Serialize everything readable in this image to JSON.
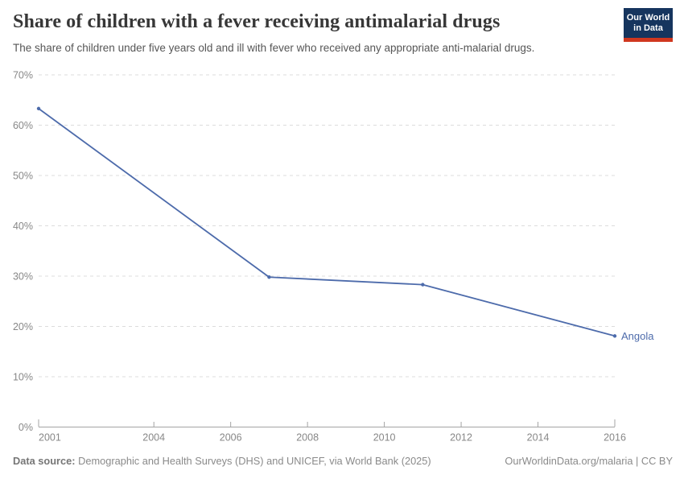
{
  "header": {
    "title": "Share of children with a fever receiving antimalarial drugs",
    "subtitle": "The share of children under five years old and ill with fever who received any appropriate anti-malarial drugs.",
    "logo": {
      "line1": "Our World",
      "line2": "in Data",
      "bg_color": "#16355e",
      "bar_color": "#d0371f"
    }
  },
  "chart_data": {
    "type": "line",
    "title": "Share of children with a fever receiving antimalarial drugs",
    "x": [
      2001,
      2007,
      2011,
      2016
    ],
    "series": [
      {
        "name": "Angola",
        "color": "#4d6bab",
        "values": [
          63.3,
          29.8,
          28.3,
          18.1
        ]
      }
    ],
    "xlabel": "",
    "ylabel": "",
    "xlim": [
      2001,
      2016
    ],
    "ylim": [
      0,
      70
    ],
    "x_ticks": [
      2001,
      2004,
      2006,
      2008,
      2010,
      2012,
      2014,
      2016
    ],
    "y_ticks": [
      0,
      10,
      20,
      30,
      40,
      50,
      60,
      70
    ],
    "y_tick_suffix": "%",
    "grid": "horizontal-dashed",
    "legend_position": "end-of-line-label"
  },
  "footer": {
    "source_label": "Data source:",
    "source_text": " Demographic and Health Surveys (DHS) and UNICEF, via World Bank (2025)",
    "link_text": "OurWorldinData.org/malaria | CC BY"
  }
}
